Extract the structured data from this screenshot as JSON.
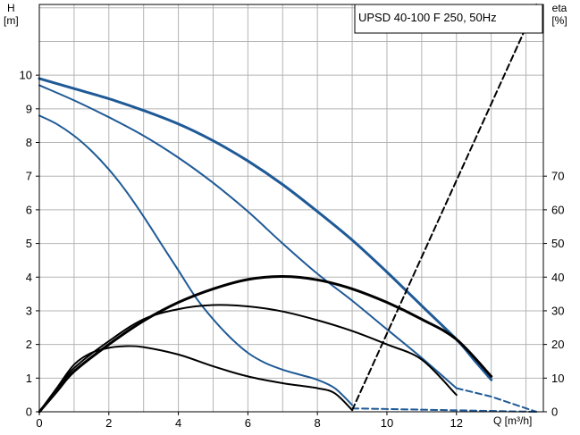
{
  "chart_data": {
    "type": "line",
    "title": "UPSD 40-100 F 250, 50Hz",
    "x_axis": {
      "label": "Q [m³/h]",
      "range": [
        0,
        14.5
      ],
      "ticks": [
        "0",
        "2",
        "4",
        "6",
        "8",
        "10",
        "12"
      ]
    },
    "y_left": {
      "label_line1": "H",
      "label_line2": "[m]",
      "range": [
        0,
        12.1
      ],
      "ticks": [
        "0",
        "1",
        "2",
        "3",
        "4",
        "5",
        "6",
        "7",
        "8",
        "9",
        "10"
      ]
    },
    "y_right": {
      "label_line1": "eta",
      "label_line2": "[%]",
      "range": [
        0,
        121
      ],
      "ticks": [
        "0",
        "10",
        "20",
        "30",
        "40",
        "50",
        "60",
        "70"
      ]
    },
    "grid": true,
    "colors": {
      "head": "#1f5a96",
      "eta": "#000000",
      "grid": "#b4b4b4"
    },
    "series": [
      {
        "kind": "head",
        "width": 3,
        "points": [
          [
            0,
            9.9
          ],
          [
            1,
            9.6
          ],
          [
            2,
            9.3
          ],
          [
            3,
            8.95
          ],
          [
            4,
            8.55
          ],
          [
            5,
            8.05
          ],
          [
            6,
            7.45
          ],
          [
            7,
            6.75
          ],
          [
            8,
            5.95
          ],
          [
            9,
            5.1
          ],
          [
            10,
            4.15
          ],
          [
            11,
            3.15
          ],
          [
            12,
            2.15
          ],
          [
            12.5,
            1.55
          ],
          [
            13,
            0.95
          ]
        ]
      },
      {
        "kind": "head",
        "width": 2,
        "points": [
          [
            0,
            9.7
          ],
          [
            1,
            9.25
          ],
          [
            2,
            8.75
          ],
          [
            3,
            8.2
          ],
          [
            4,
            7.55
          ],
          [
            5,
            6.8
          ],
          [
            6,
            5.95
          ],
          [
            7,
            5.0
          ],
          [
            8,
            4.1
          ],
          [
            9,
            3.3
          ],
          [
            10,
            2.45
          ],
          [
            11,
            1.6
          ],
          [
            12,
            0.7
          ]
        ]
      },
      {
        "kind": "head",
        "width": 2,
        "points": [
          [
            0,
            8.8
          ],
          [
            0.5,
            8.55
          ],
          [
            1,
            8.2
          ],
          [
            1.5,
            7.75
          ],
          [
            2,
            7.2
          ],
          [
            2.5,
            6.55
          ],
          [
            3,
            5.8
          ],
          [
            3.5,
            5.0
          ],
          [
            4,
            4.2
          ],
          [
            4.5,
            3.4
          ],
          [
            5,
            2.75
          ],
          [
            5.5,
            2.2
          ],
          [
            6,
            1.75
          ],
          [
            6.5,
            1.45
          ],
          [
            7,
            1.25
          ],
          [
            7.5,
            1.1
          ],
          [
            8,
            0.95
          ],
          [
            8.5,
            0.7
          ],
          [
            9,
            0.2
          ]
        ]
      },
      {
        "kind": "eta",
        "width": 3,
        "points": [
          [
            0,
            0
          ],
          [
            0.5,
            6
          ],
          [
            1,
            12
          ],
          [
            2,
            20
          ],
          [
            3,
            27
          ],
          [
            4,
            32.5
          ],
          [
            5,
            36.5
          ],
          [
            6,
            39.3
          ],
          [
            7,
            40.2
          ],
          [
            8,
            39.2
          ],
          [
            9,
            36.5
          ],
          [
            10,
            32.5
          ],
          [
            11,
            27.5
          ],
          [
            12,
            21.5
          ],
          [
            13,
            10.5
          ]
        ]
      },
      {
        "kind": "eta",
        "width": 2,
        "points": [
          [
            0,
            0
          ],
          [
            0.5,
            6.5
          ],
          [
            1,
            13
          ],
          [
            2,
            21
          ],
          [
            3,
            27.5
          ],
          [
            4,
            30.5
          ],
          [
            5,
            31.7
          ],
          [
            6,
            31.3
          ],
          [
            7,
            29.8
          ],
          [
            8,
            27.2
          ],
          [
            9,
            24
          ],
          [
            10,
            20
          ],
          [
            11,
            15.5
          ],
          [
            12,
            5
          ]
        ]
      },
      {
        "kind": "eta",
        "width": 2,
        "points": [
          [
            0,
            0
          ],
          [
            0.5,
            7
          ],
          [
            1,
            14
          ],
          [
            1.5,
            17.5
          ],
          [
            2,
            19
          ],
          [
            2.5,
            19.5
          ],
          [
            3,
            19.2
          ],
          [
            4,
            17
          ],
          [
            5,
            13.5
          ],
          [
            6,
            10.5
          ],
          [
            7,
            8.5
          ],
          [
            8,
            7
          ],
          [
            8.5,
            5.5
          ],
          [
            9,
            0.5
          ]
        ]
      },
      {
        "kind": "head",
        "dashed": true,
        "width": 2,
        "points": [
          [
            9,
            0.1
          ],
          [
            14.3,
            0
          ]
        ]
      },
      {
        "kind": "head",
        "dashed": true,
        "width": 2,
        "points": [
          [
            12,
            0.7
          ],
          [
            13,
            0.45
          ],
          [
            14.3,
            0
          ]
        ]
      },
      {
        "kind": "eta",
        "dashed": true,
        "width": 2,
        "points": [
          [
            9,
            0.5
          ],
          [
            14.3,
            121
          ]
        ]
      }
    ]
  }
}
